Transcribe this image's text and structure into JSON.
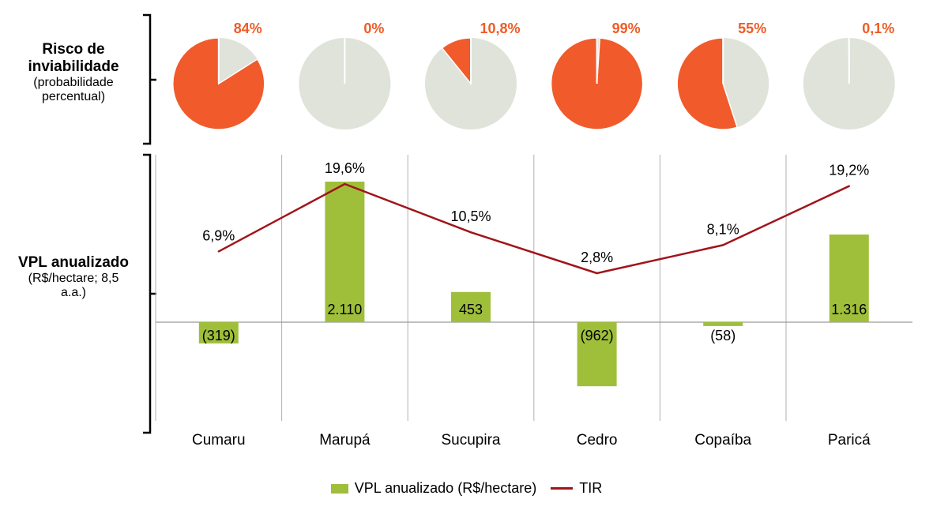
{
  "labels": {
    "risk_title": "Risco de inviabilidade",
    "risk_subtitle": "(probabilidade percentual)",
    "vpl_title": "VPL anualizado",
    "vpl_subtitle": "(R$/hectare; 8,5 a.a.)"
  },
  "colors": {
    "risk": "#f15a2b",
    "pie_bg": "#dfe3da",
    "bar": "#9fbf3b",
    "line": "#a0151b",
    "risk_label": "#ef5b26",
    "grid": "#b0b0b0"
  },
  "chart_data": [
    {
      "type": "pie",
      "title": "Risco de inviabilidade",
      "categories": [
        "Cumaru",
        "Marupá",
        "Sucupira",
        "Cedro",
        "Copaíba",
        "Paricá"
      ],
      "values": [
        84,
        0,
        10.8,
        99,
        55,
        0.1
      ],
      "labels": [
        "84%",
        "0%",
        "10,8%",
        "99%",
        "55%",
        "0,1%"
      ]
    },
    {
      "type": "bar",
      "categories": [
        "Cumaru",
        "Marupá",
        "Sucupira",
        "Cedro",
        "Copaíba",
        "Paricá"
      ],
      "ylim": [
        -1200,
        2800
      ],
      "series": [
        {
          "name": "VPL anualizado (R$/hectare)",
          "type": "bar",
          "values": [
            -319,
            2110,
            453,
            -962,
            -58,
            1316
          ],
          "labels": [
            "(319)",
            "2.110",
            "453",
            "(962)",
            "(58)",
            "1.316"
          ]
        },
        {
          "name": "TIR",
          "type": "line",
          "values": [
            6.9,
            19.6,
            10.5,
            2.8,
            8.1,
            19.2
          ],
          "labels": [
            "6,9%",
            "19,6%",
            "10,5%",
            "2,8%",
            "8,1%",
            "19,2%"
          ]
        }
      ]
    }
  ]
}
